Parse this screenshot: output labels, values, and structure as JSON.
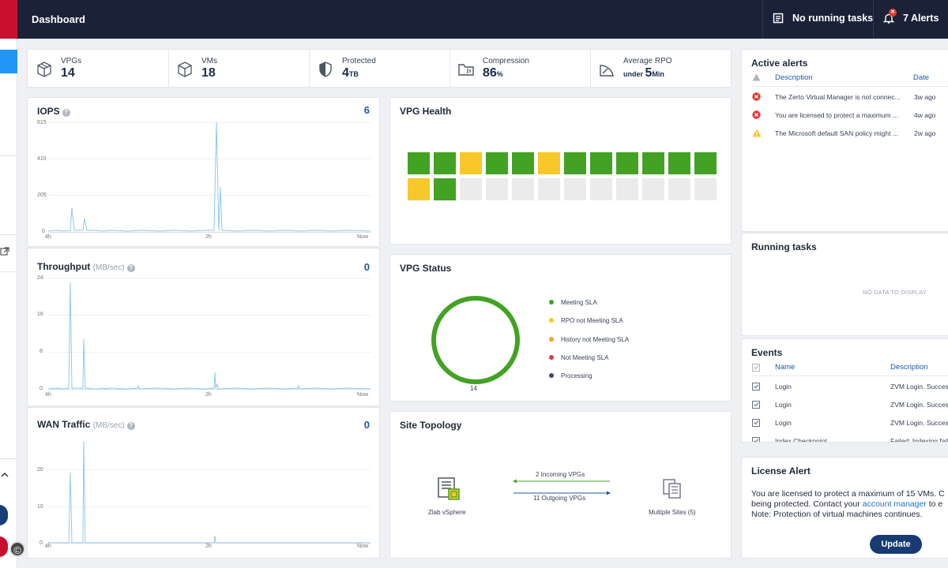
{
  "header": {
    "title": "Dashboard",
    "tasks_label": "No running tasks",
    "alerts_label": "7 Alerts"
  },
  "stats": [
    {
      "label": "VPGs",
      "value": "14",
      "unit": "",
      "prefix": ""
    },
    {
      "label": "VMs",
      "value": "18",
      "unit": "",
      "prefix": ""
    },
    {
      "label": "Protected",
      "value": "4",
      "unit": "TB",
      "prefix": ""
    },
    {
      "label": "Compression",
      "value": "86",
      "unit": "%",
      "prefix": ""
    },
    {
      "label": "Average RPO",
      "value": "5",
      "unit": "Min",
      "prefix": "under "
    }
  ],
  "iops": {
    "title": "IOPS",
    "current": "6",
    "y_ticks": [
      "615",
      "410",
      "205",
      "0"
    ],
    "x_ticks": [
      "4h",
      "2h",
      "Now"
    ]
  },
  "throughput": {
    "title": "Throughput",
    "unit": "(MB/sec)",
    "current": "0",
    "y_ticks": [
      "24",
      "16",
      "8",
      "0"
    ],
    "x_ticks": [
      "4h",
      "2h",
      "Now"
    ]
  },
  "wan": {
    "title": "WAN Traffic",
    "unit": "(MB/sec)",
    "current": "0",
    "y_ticks": [
      "20",
      "10",
      "0"
    ],
    "x_ticks": [
      "4h",
      "2h",
      "Now"
    ]
  },
  "vpg_health": {
    "title": "VPG Health",
    "row1": [
      "green",
      "green",
      "yellow",
      "green",
      "green",
      "yellow",
      "green",
      "green",
      "green",
      "green",
      "green",
      "green"
    ],
    "row2": [
      "yellow",
      "green",
      "empty",
      "empty",
      "empty",
      "empty",
      "empty",
      "empty",
      "empty",
      "empty",
      "empty",
      "empty"
    ]
  },
  "vpg_status": {
    "title": "VPG Status",
    "total": "14",
    "legend": [
      {
        "label": "Meeting SLA",
        "color": "#43a224"
      },
      {
        "label": "RPO not Meeting SLA",
        "color": "#f7c82a"
      },
      {
        "label": "History not Meeting SLA",
        "color": "#f2a31c"
      },
      {
        "label": "Not Meeting SLA",
        "color": "#e53935"
      },
      {
        "label": "Processing",
        "color": "#3d4a5c"
      }
    ]
  },
  "topology": {
    "title": "Site Topology",
    "local": "Zlab vSphere",
    "remote": "Multiple Sites (5)",
    "incoming": "2 Incoming VPGs",
    "outgoing": "11 Outgoing VPGs"
  },
  "active_alerts": {
    "title": "Active alerts",
    "col_description": "Description",
    "col_date": "Date",
    "rows": [
      {
        "level": "error",
        "text": "The Zerto Virtual Manager is not connec...",
        "date": "3w ago"
      },
      {
        "level": "error",
        "text": "You are licensed to protect a maximum ...",
        "date": "4w ago"
      },
      {
        "level": "warning",
        "text": "The Microsoft default SAN policy might ...",
        "date": "2w ago"
      }
    ]
  },
  "running_tasks": {
    "title": "Running tasks",
    "empty": "NO DATA TO DISPLAY"
  },
  "events": {
    "title": "Events",
    "col_name": "Name",
    "col_description": "Description",
    "rows": [
      {
        "name": "Login",
        "desc": "ZVM Login. Succes"
      },
      {
        "name": "Login",
        "desc": "ZVM Login. Succes"
      },
      {
        "name": "Login",
        "desc": "ZVM Login. Succes"
      },
      {
        "name": "Index Checkpoint",
        "desc": "Failed: Indexing fail"
      }
    ]
  },
  "license": {
    "title": "License Alert",
    "line1": "You are licensed to protect a maximum of 15 VMs. C",
    "line2_pre": "being protected. Contact your ",
    "line2_link": "account manager",
    "line2_post": " to e",
    "line3": "Note: Protection of virtual machines continues.",
    "button": "Update"
  },
  "colors": {
    "green": "#43a224",
    "yellow": "#f7c82a",
    "empty": "#ebebeb",
    "line": "#8ec7ef"
  }
}
